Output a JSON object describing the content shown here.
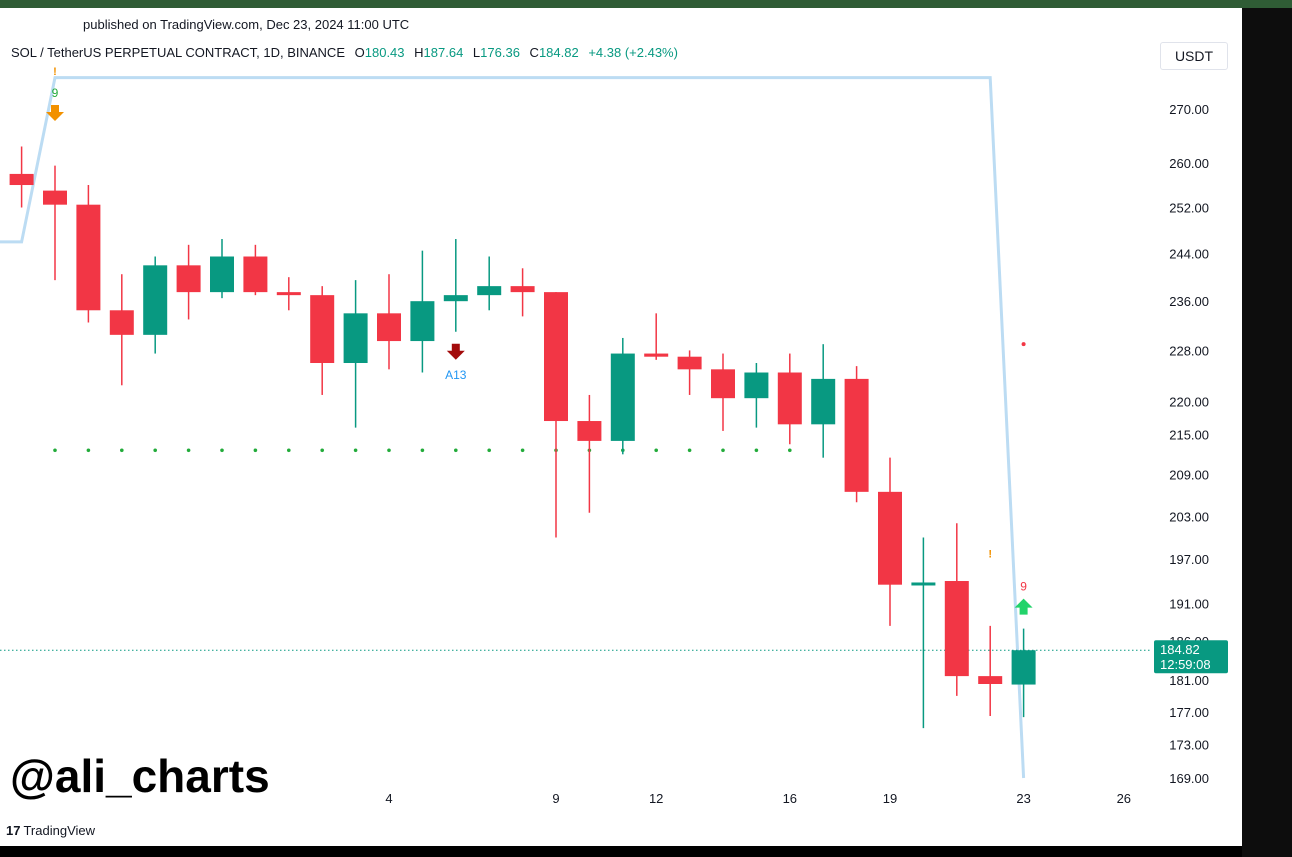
{
  "published": "published on TradingView.com, Dec 23, 2024 11:00 UTC",
  "header": {
    "symbol": "SOL / TetherUS PERPETUAL CONTRACT, 1D, BINANCE",
    "o_label": "O",
    "o_value": "180.43",
    "h_label": "H",
    "h_value": "187.64",
    "l_label": "L",
    "l_value": "176.36",
    "c_label": "C",
    "c_value": "184.82",
    "change": "+4.38 (+2.43%)"
  },
  "currency": "USDT",
  "watermark": "@ali_charts",
  "brand": {
    "logo": "17",
    "name": "TradingView"
  },
  "colors": {
    "up": "#089981",
    "down": "#f23645",
    "line": "#bcdcf3",
    "dots": "#22ab3a",
    "marker_orange": "#f29100",
    "marker_green": "#22d36a",
    "marker_darkred": "#a30b0b"
  },
  "chart_data": {
    "type": "candlestick",
    "price_axis": {
      "ticks": [
        270.0,
        260.0,
        252.0,
        244.0,
        236.0,
        228.0,
        220.0,
        215.0,
        209.0,
        203.0,
        197.0,
        191.0,
        186.0,
        181.0,
        177.0,
        173.0,
        169.0
      ],
      "tick_labels": [
        "270.00",
        "260.00",
        "252.00",
        "244.00",
        "236.00",
        "228.00",
        "220.00",
        "215.00",
        "209.00",
        "203.00",
        "197.00",
        "191.00",
        "186.00",
        "181.00",
        "177.00",
        "173.00",
        "169.00"
      ],
      "scale": "log"
    },
    "time_axis": [
      {
        "label": "4",
        "day": "2024-12-04"
      },
      {
        "label": "9",
        "day": "2024-12-09"
      },
      {
        "label": "12",
        "day": "2024-12-12"
      },
      {
        "label": "16",
        "day": "2024-12-16"
      },
      {
        "label": "19",
        "day": "2024-12-19"
      },
      {
        "label": "23",
        "day": "2024-12-23"
      },
      {
        "label": "26",
        "day": "2024-12-26"
      }
    ],
    "candles": [
      {
        "day": "2024-11-23",
        "o": 258.0,
        "h": 263.0,
        "l": 252.0,
        "c": 256.0
      },
      {
        "day": "2024-11-24",
        "o": 255.0,
        "h": 259.5,
        "l": 239.5,
        "c": 252.5
      },
      {
        "day": "2024-11-25",
        "o": 252.5,
        "h": 256.0,
        "l": 232.5,
        "c": 234.5
      },
      {
        "day": "2024-11-26",
        "o": 234.5,
        "h": 240.5,
        "l": 222.5,
        "c": 230.5
      },
      {
        "day": "2024-11-27",
        "o": 230.5,
        "h": 243.5,
        "l": 227.5,
        "c": 242.0
      },
      {
        "day": "2024-11-28",
        "o": 242.0,
        "h": 245.5,
        "l": 233.0,
        "c": 237.5
      },
      {
        "day": "2024-11-29",
        "o": 237.5,
        "h": 246.5,
        "l": 236.5,
        "c": 243.5
      },
      {
        "day": "2024-11-30",
        "o": 243.5,
        "h": 245.5,
        "l": 237.0,
        "c": 237.5
      },
      {
        "day": "2024-12-01",
        "o": 237.5,
        "h": 240.0,
        "l": 234.5,
        "c": 237.0
      },
      {
        "day": "2024-12-02",
        "o": 237.0,
        "h": 238.5,
        "l": 221.0,
        "c": 226.0
      },
      {
        "day": "2024-12-03",
        "o": 226.0,
        "h": 239.5,
        "l": 216.0,
        "c": 234.0
      },
      {
        "day": "2024-12-04",
        "o": 234.0,
        "h": 240.5,
        "l": 225.0,
        "c": 229.5
      },
      {
        "day": "2024-12-05",
        "o": 229.5,
        "h": 244.5,
        "l": 224.5,
        "c": 236.0
      },
      {
        "day": "2024-12-06",
        "o": 236.0,
        "h": 246.5,
        "l": 231.0,
        "c": 237.0
      },
      {
        "day": "2024-12-07",
        "o": 237.0,
        "h": 243.5,
        "l": 234.5,
        "c": 238.5
      },
      {
        "day": "2024-12-08",
        "o": 238.5,
        "h": 241.5,
        "l": 233.5,
        "c": 237.5
      },
      {
        "day": "2024-12-09",
        "o": 237.5,
        "h": 237.5,
        "l": 200.0,
        "c": 217.0
      },
      {
        "day": "2024-12-10",
        "o": 217.0,
        "h": 221.0,
        "l": 203.5,
        "c": 214.0
      },
      {
        "day": "2024-12-11",
        "o": 214.0,
        "h": 230.0,
        "l": 212.0,
        "c": 227.5
      },
      {
        "day": "2024-12-12",
        "o": 227.5,
        "h": 234.0,
        "l": 226.5,
        "c": 227.0
      },
      {
        "day": "2024-12-13",
        "o": 227.0,
        "h": 228.0,
        "l": 221.0,
        "c": 225.0
      },
      {
        "day": "2024-12-14",
        "o": 225.0,
        "h": 227.5,
        "l": 215.5,
        "c": 220.5
      },
      {
        "day": "2024-12-15",
        "o": 220.5,
        "h": 226.0,
        "l": 216.0,
        "c": 224.5
      },
      {
        "day": "2024-12-16",
        "o": 224.5,
        "h": 227.5,
        "l": 213.5,
        "c": 216.5
      },
      {
        "day": "2024-12-17",
        "o": 216.5,
        "h": 229.0,
        "l": 211.5,
        "c": 223.5
      },
      {
        "day": "2024-12-18",
        "o": 223.5,
        "h": 225.5,
        "l": 205.0,
        "c": 206.5
      },
      {
        "day": "2024-12-19",
        "o": 206.5,
        "h": 211.5,
        "l": 188.0,
        "c": 193.5
      },
      {
        "day": "2024-12-20",
        "o": 193.5,
        "h": 200.0,
        "l": 175.0,
        "c": 193.8
      },
      {
        "day": "2024-12-21",
        "o": 194.0,
        "h": 202.0,
        "l": 179.0,
        "c": 181.5
      },
      {
        "day": "2024-12-22",
        "o": 181.5,
        "h": 188.0,
        "l": 176.5,
        "c": 180.5
      },
      {
        "day": "2024-12-23",
        "o": 180.43,
        "h": 187.64,
        "l": 176.36,
        "c": 184.82
      }
    ],
    "overlay_line": [
      {
        "day": "2024-11-22",
        "value": 246.0
      },
      {
        "day": "2024-11-23",
        "value": 246.0
      },
      {
        "day": "2024-11-24",
        "value": 276.0
      },
      {
        "day": "2024-12-22",
        "value": 276.0
      },
      {
        "day": "2024-12-23",
        "value": 169.0
      }
    ],
    "support_dots": {
      "value": 212.6,
      "from_day": "2024-11-24",
      "to_day": "2024-12-16"
    },
    "markers": [
      {
        "day": "2024-11-24",
        "type": "arrow-down",
        "color": "orange",
        "label": "9",
        "label_color": "#22ab3a",
        "tick": "!",
        "tick_value": 276.5
      },
      {
        "day": "2024-12-06",
        "type": "arrow-down",
        "color": "darkred",
        "label": "A13",
        "label_color": "#2196f3"
      },
      {
        "day": "2024-12-23",
        "type": "arrow-up",
        "color": "green",
        "label": "9",
        "label_color": "#f23645"
      },
      {
        "day": "2024-12-22",
        "type": "tick",
        "color": "orange",
        "label": "!",
        "value": 197.2
      }
    ],
    "small_dot": {
      "day": "2024-12-23",
      "value": 229.0
    },
    "current_price": {
      "label": "184.82",
      "countdown": "12:59:08"
    }
  }
}
